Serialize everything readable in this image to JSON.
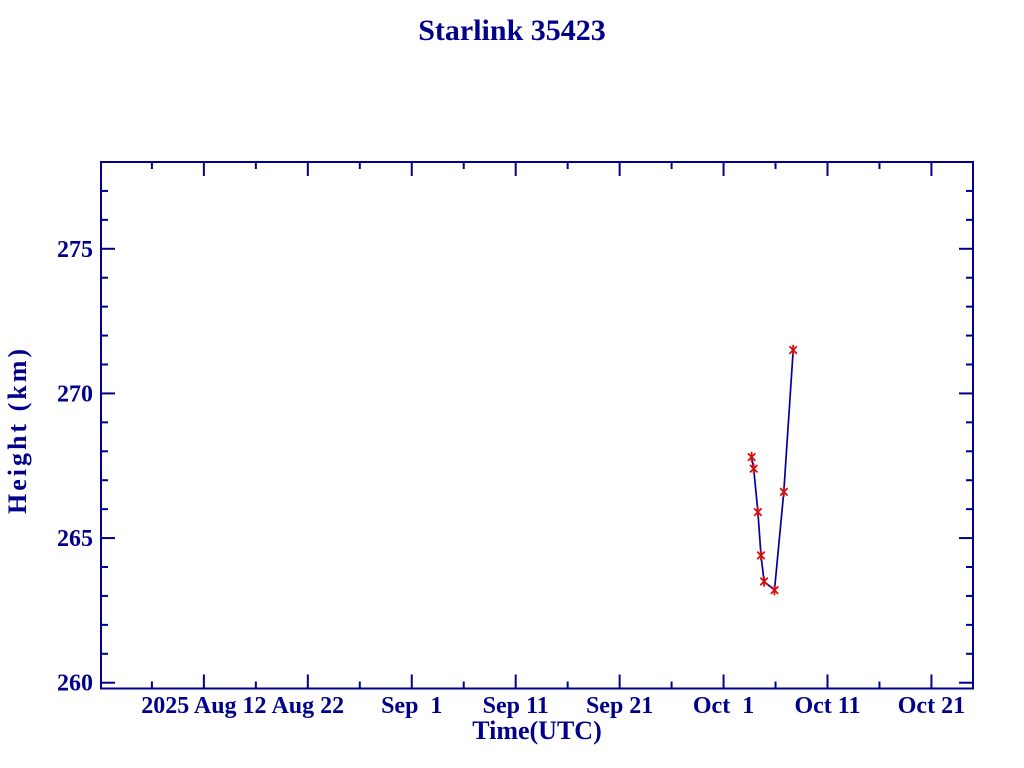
{
  "page": {
    "background_color": "#FFFFFF"
  },
  "chart": {
    "colors": {
      "axis": "#00008B",
      "text": "#00008B",
      "line": "#0000A0",
      "marker": "#D01010",
      "plot_background": "#FFFFFF"
    },
    "marker_glyph": "asterisk"
  },
  "chart_data": {
    "type": "line",
    "title": "Starlink 35423",
    "xlabel": "Time(UTC)",
    "ylabel": "Height (km)",
    "grid": false,
    "legend": null,
    "x_unit": "day_of_year_2025",
    "xlim": [
      214.1,
      298.0
    ],
    "ylim": [
      259.8,
      278.0
    ],
    "x_major_ticks": [
      {
        "doy": 224,
        "label": "2025 Aug 12"
      },
      {
        "doy": 234,
        "label": "Aug 22"
      },
      {
        "doy": 244,
        "label": "Sep  1"
      },
      {
        "doy": 254,
        "label": "Sep 11"
      },
      {
        "doy": 264,
        "label": "Sep 21"
      },
      {
        "doy": 274,
        "label": "Oct  1"
      },
      {
        "doy": 284,
        "label": "Oct 11"
      },
      {
        "doy": 294,
        "label": "Oct 21"
      }
    ],
    "x_minor_ticks": [
      219,
      229,
      239,
      249,
      259,
      269,
      279,
      289
    ],
    "y_major_ticks": [
      {
        "value": 260,
        "label": "260"
      },
      {
        "value": 265,
        "label": "265"
      },
      {
        "value": 270,
        "label": "270"
      },
      {
        "value": 275,
        "label": "275"
      }
    ],
    "y_minor_ticks": [
      261,
      262,
      263,
      264,
      266,
      267,
      268,
      269,
      271,
      272,
      273,
      274,
      276,
      277
    ],
    "series": [
      {
        "name": "Height (km)",
        "marker": "asterisk",
        "points": [
          {
            "date": "2025 Oct 3.7",
            "doy": 276.7,
            "height_km": 267.8
          },
          {
            "date": "2025 Oct 3.9",
            "doy": 276.9,
            "height_km": 267.4
          },
          {
            "date": "2025 Oct 4.3",
            "doy": 277.3,
            "height_km": 265.9
          },
          {
            "date": "2025 Oct 4.6",
            "doy": 277.6,
            "height_km": 264.4
          },
          {
            "date": "2025 Oct 4.9",
            "doy": 277.9,
            "height_km": 263.5
          },
          {
            "date": "2025 Oct 5.9",
            "doy": 278.9,
            "height_km": 263.2
          },
          {
            "date": "2025 Oct 6.8",
            "doy": 279.8,
            "height_km": 266.6
          },
          {
            "date": "2025 Oct 7.7",
            "doy": 280.7,
            "height_km": 271.5
          }
        ]
      }
    ]
  }
}
